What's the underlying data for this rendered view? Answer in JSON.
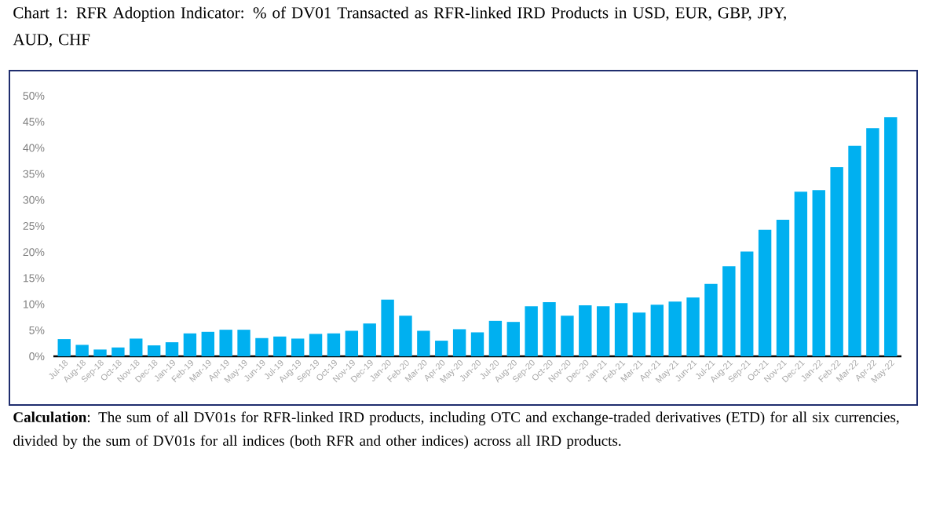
{
  "chart_data": {
    "type": "bar",
    "title": "Chart 1: RFR Adoption Indicator: % of DV01 Transacted as RFR-linked IRD Products in USD, EUR, GBP, JPY, AUD, CHF",
    "categories": [
      "Jul-18",
      "Aug-18",
      "Sep-18",
      "Oct-18",
      "Nov-18",
      "Dec-18",
      "Jan-19",
      "Feb-19",
      "Mar-19",
      "Apr-19",
      "May-19",
      "Jun-19",
      "Jul-19",
      "Aug-19",
      "Sep-19",
      "Oct-19",
      "Nov-19",
      "Dec-19",
      "Jan-20",
      "Feb-20",
      "Mar-20",
      "Apr-20",
      "May-20",
      "Jun-20",
      "Jul-20",
      "Aug-20",
      "Sep-20",
      "Oct-20",
      "Nov-20",
      "Dec-20",
      "Jan-21",
      "Feb-21",
      "Mar-21",
      "Apr-21",
      "May-21",
      "Jun-21",
      "Jul-21",
      "Aug-21",
      "Sep-21",
      "Oct-21",
      "Nov-21",
      "Dec-21",
      "Jan-22",
      "Feb-22",
      "Mar-22",
      "Apr-22",
      "May-22"
    ],
    "values": [
      3.3,
      2.2,
      1.3,
      1.7,
      3.4,
      2.1,
      2.7,
      4.4,
      4.7,
      5.1,
      5.1,
      3.5,
      3.8,
      3.4,
      4.3,
      4.4,
      4.9,
      6.3,
      10.9,
      7.8,
      4.9,
      3.0,
      5.2,
      4.6,
      6.8,
      6.6,
      9.6,
      10.4,
      7.8,
      9.8,
      9.6,
      10.2,
      8.4,
      9.9,
      10.5,
      11.3,
      13.9,
      17.3,
      20.1,
      24.3,
      26.2,
      31.6,
      31.9,
      36.3,
      40.4,
      43.8,
      45.9
    ],
    "color": "#00b0f0",
    "ylim": [
      0,
      50
    ],
    "yticks": [
      {
        "value": 0,
        "label": "0%"
      },
      {
        "value": 5,
        "label": "5%"
      },
      {
        "value": 10,
        "label": "10%"
      },
      {
        "value": 15,
        "label": "15%"
      },
      {
        "value": 20,
        "label": "20%"
      },
      {
        "value": 25,
        "label": "25%"
      },
      {
        "value": 30,
        "label": "30%"
      },
      {
        "value": 35,
        "label": "35%"
      },
      {
        "value": 40,
        "label": "40%"
      },
      {
        "value": 45,
        "label": "45%"
      },
      {
        "value": 50,
        "label": "50%"
      }
    ],
    "annotations": [
      "**Calculation**: The sum of all DV01s for RFR-linked IRD products, including OTC and exchange-traded derivatives (ETD) for all six currencies, divided by the sum of DV01s for all indices (both RFR and other indices) across all IRD products."
    ]
  }
}
